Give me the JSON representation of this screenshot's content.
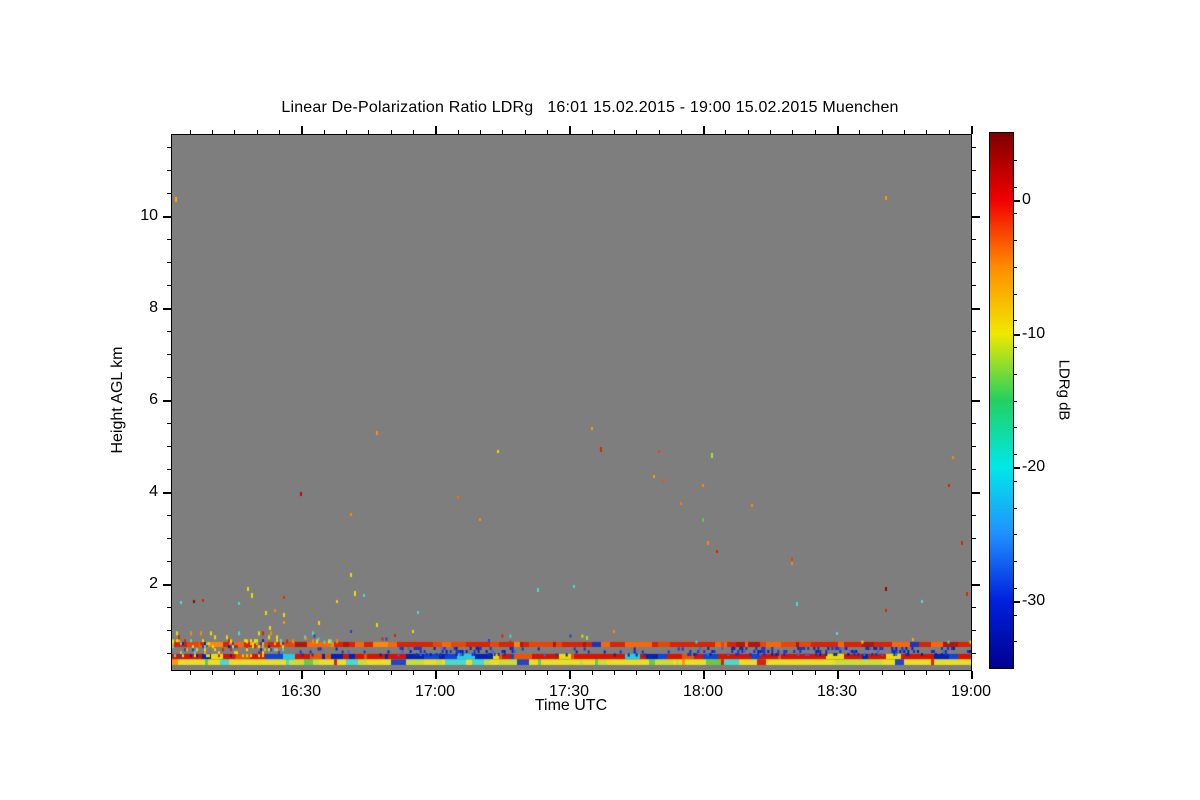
{
  "chart_data": {
    "type": "heatmap",
    "title": "Linear De-Polarization Ratio LDRg   16:01 15.02.2015 - 19:00 15.02.2015 Muenchen",
    "station": "Muenchen",
    "time_start": "16:01 15.02.2015",
    "time_end": "19:00 15.02.2015",
    "background_color": "#7e7e7e",
    "x_axis": {
      "label": "Time UTC",
      "range": [
        "16:01",
        "19:00"
      ],
      "ticks": [
        "16:30",
        "17:00",
        "17:30",
        "18:00",
        "18:30",
        "19:00"
      ],
      "minor_step_min": 5
    },
    "y_axis": {
      "label": "Height AGL km",
      "range_km": [
        0.13,
        11.76
      ],
      "ticks": [
        2,
        4,
        6,
        8,
        10
      ],
      "minor_step_km": 0.5
    },
    "colorbar": {
      "label": "LDRg dB",
      "range_db": [
        5,
        -35
      ],
      "ticks": [
        0,
        -10,
        -20,
        -30
      ],
      "minor_step_db": 2,
      "gradient": [
        [
          "#7f0000",
          0
        ],
        [
          "#f00000",
          12.5
        ],
        [
          "#ff8c00",
          25
        ],
        [
          "#f0e800",
          37.5
        ],
        [
          "#22d060",
          50
        ],
        [
          "#00e8e8",
          62.5
        ],
        [
          "#2090ff",
          75
        ],
        [
          "#0020dd",
          87.5
        ],
        [
          "#000090",
          100
        ]
      ]
    },
    "ground_bands": [
      {
        "name": "surface-red-line",
        "km_hi": 0.74,
        "km_lo": 0.63,
        "step": 3,
        "max_run": 5,
        "palette": [
          [
            "#dd2200",
            40
          ],
          [
            "#ee4400",
            25
          ],
          [
            "#b81400",
            15
          ],
          [
            "#ff6600",
            15
          ],
          [
            "#ff8800",
            3
          ],
          [
            "#2233bb",
            2
          ]
        ]
      },
      {
        "name": "near-ground-red-blue",
        "km_hi": 0.48,
        "km_lo": 0.37,
        "step": 3,
        "max_run": 6,
        "palette": [
          [
            "#dd1100",
            48
          ],
          [
            "#0022bb",
            22
          ],
          [
            "#1144dd",
            12
          ],
          [
            "#ee5500",
            8
          ],
          [
            "#22ccee",
            5
          ],
          [
            "#eedd00",
            5
          ]
        ]
      },
      {
        "name": "lowest-yellow-green",
        "km_hi": 0.36,
        "km_lo": 0.24,
        "step": 3,
        "max_run": 6,
        "palette": [
          [
            "#e8e020",
            52
          ],
          [
            "#c8e030",
            14
          ],
          [
            "#66cc44",
            10
          ],
          [
            "#44ddcc",
            9
          ],
          [
            "#ff9900",
            7
          ],
          [
            "#2244cc",
            4
          ],
          [
            "#dd2200",
            4
          ]
        ]
      }
    ],
    "noise_regions": [
      {
        "name": "left-mixed-clutter",
        "t0": "16:01",
        "t1": "16:26",
        "km_hi": 0.8,
        "km_lo": 0.45,
        "density": 0.3,
        "dw": 2,
        "dh": 3,
        "palette": [
          [
            "#eedd00",
            30
          ],
          [
            "#ffaa00",
            15
          ],
          [
            "#dd2200",
            15
          ],
          [
            "#44ddcc",
            12
          ],
          [
            "#2244cc",
            13
          ],
          [
            "#aadd33",
            8
          ],
          [
            "#0022aa",
            7
          ]
        ]
      },
      {
        "name": "left-yellow-spikes",
        "t0": "16:01",
        "t1": "16:38",
        "km_hi": 0.97,
        "km_lo": 0.74,
        "density": 0.07,
        "dw": 2,
        "dh": 4,
        "palette": [
          [
            "#eedd00",
            60
          ],
          [
            "#44ddcc",
            15
          ],
          [
            "#ff8800",
            15
          ],
          [
            "#dd2200",
            10
          ]
        ]
      },
      {
        "name": "blue-drips-a",
        "t0": "16:26",
        "t1": "16:52",
        "km_hi": 0.62,
        "km_lo": 0.48,
        "density": 0.1,
        "dw": 2,
        "dh": 3,
        "palette": [
          [
            "#1133cc",
            50
          ],
          [
            "#0022aa",
            35
          ],
          [
            "#3366ee",
            15
          ]
        ]
      },
      {
        "name": "blue-drips-b",
        "t0": "16:52",
        "t1": "17:18",
        "km_hi": 0.63,
        "km_lo": 0.47,
        "density": 0.3,
        "dw": 2,
        "dh": 3,
        "palette": [
          [
            "#1133cc",
            50
          ],
          [
            "#0022aa",
            35
          ],
          [
            "#3366ee",
            15
          ]
        ]
      },
      {
        "name": "blue-drips-c",
        "t0": "17:18",
        "t1": "17:56",
        "km_hi": 0.62,
        "km_lo": 0.48,
        "density": 0.08,
        "dw": 2,
        "dh": 3,
        "palette": [
          [
            "#1133cc",
            50
          ],
          [
            "#0022aa",
            35
          ],
          [
            "#3366ee",
            15
          ]
        ]
      },
      {
        "name": "blue-drips-d",
        "t0": "17:56",
        "t1": "18:47",
        "km_hi": 0.63,
        "km_lo": 0.47,
        "density": 0.32,
        "dw": 2,
        "dh": 3,
        "palette": [
          [
            "#1133cc",
            50
          ],
          [
            "#0022aa",
            35
          ],
          [
            "#3366ee",
            15
          ]
        ]
      },
      {
        "name": "blue-drips-e",
        "t0": "18:47",
        "t1": "19:00",
        "km_hi": 0.63,
        "km_lo": 0.47,
        "density": 0.22,
        "dw": 2,
        "dh": 3,
        "palette": [
          [
            "#1133cc",
            50
          ],
          [
            "#0022aa",
            35
          ],
          [
            "#3366ee",
            15
          ]
        ]
      },
      {
        "name": "sparse-above-line",
        "t0": "16:30",
        "t1": "19:00",
        "km_hi": 0.9,
        "km_lo": 0.72,
        "density": 0.015,
        "dw": 2,
        "dh": 3,
        "palette": [
          [
            "#2244cc",
            40
          ],
          [
            "#44ddcc",
            25
          ],
          [
            "#dd2200",
            20
          ],
          [
            "#eedd00",
            15
          ]
        ]
      }
    ],
    "specks": [
      {
        "t": "16:02",
        "km": 10.35,
        "c": "#ffaa00",
        "h": 5
      },
      {
        "t": "18:41",
        "km": 10.39,
        "c": "#ff9900",
        "h": 4
      },
      {
        "t": "16:47",
        "km": 5.28,
        "c": "#ff8833",
        "h": 4
      },
      {
        "t": "17:35",
        "km": 5.37,
        "c": "#ff9900",
        "h": 3
      },
      {
        "t": "16:30",
        "km": 3.96,
        "c": "#cc0000",
        "h": 4
      },
      {
        "t": "16:41",
        "km": 3.5,
        "c": "#ff8800",
        "h": 3
      },
      {
        "t": "16:41",
        "km": 2.2,
        "c": "#eedd00",
        "h": 4
      },
      {
        "t": "17:10",
        "km": 3.41,
        "c": "#ff8800",
        "h": 3
      },
      {
        "t": "17:14",
        "km": 4.87,
        "c": "#eedd00",
        "h": 3
      },
      {
        "t": "17:05",
        "km": 3.89,
        "c": "#ff6600",
        "h": 3
      },
      {
        "t": "17:37",
        "km": 4.93,
        "c": "#dd2200",
        "h": 5
      },
      {
        "t": "17:50",
        "km": 4.87,
        "c": "#ee4411",
        "h": 3
      },
      {
        "t": "18:02",
        "km": 4.8,
        "c": "#aade33",
        "h": 5
      },
      {
        "t": "17:49",
        "km": 4.33,
        "c": "#ff9900",
        "h": 3
      },
      {
        "t": "17:51",
        "km": 4.24,
        "c": "#ee5511",
        "h": 3
      },
      {
        "t": "18:00",
        "km": 4.13,
        "c": "#ff8800",
        "h": 3
      },
      {
        "t": "17:55",
        "km": 3.76,
        "c": "#ff7700",
        "h": 3
      },
      {
        "t": "18:11",
        "km": 3.7,
        "c": "#ff8800",
        "h": 3
      },
      {
        "t": "18:00",
        "km": 3.4,
        "c": "#55cc55",
        "h": 4
      },
      {
        "t": "18:01",
        "km": 2.9,
        "c": "#ff8800",
        "h": 4
      },
      {
        "t": "18:03",
        "km": 2.7,
        "c": "#dd2200",
        "h": 3
      },
      {
        "t": "18:20",
        "km": 2.54,
        "c": "#ee4400",
        "h": 4
      },
      {
        "t": "18:20",
        "km": 2.44,
        "c": "#ff8800",
        "h": 3
      },
      {
        "t": "18:21",
        "km": 1.57,
        "c": "#44ddcc",
        "h": 4
      },
      {
        "t": "18:41",
        "km": 1.89,
        "c": "#990000",
        "h": 4
      },
      {
        "t": "18:49",
        "km": 1.61,
        "c": "#44ddee",
        "h": 3
      },
      {
        "t": "18:41",
        "km": 1.43,
        "c": "#dd2200",
        "h": 3
      },
      {
        "t": "18:56",
        "km": 4.76,
        "c": "#ff8800",
        "h": 3
      },
      {
        "t": "18:55",
        "km": 4.13,
        "c": "#dd2200",
        "h": 3
      },
      {
        "t": "18:58",
        "km": 2.89,
        "c": "#dd2200",
        "h": 4
      },
      {
        "t": "18:59",
        "km": 1.78,
        "c": "#dd2200",
        "h": 4
      },
      {
        "t": "17:23",
        "km": 1.87,
        "c": "#44ddcc",
        "h": 4
      },
      {
        "t": "16:19",
        "km": 1.76,
        "c": "#eedd00",
        "h": 5
      },
      {
        "t": "16:18",
        "km": 1.9,
        "c": "#eedd00",
        "h": 4
      },
      {
        "t": "16:16",
        "km": 1.57,
        "c": "#44ddcc",
        "h": 3
      },
      {
        "t": "16:03",
        "km": 1.59,
        "c": "#44ddee",
        "h": 3
      },
      {
        "t": "16:06",
        "km": 1.61,
        "c": "#990000",
        "h": 3
      },
      {
        "t": "16:08",
        "km": 1.65,
        "c": "#dd2200",
        "h": 3
      },
      {
        "t": "16:26",
        "km": 1.7,
        "c": "#dd3300",
        "h": 3
      },
      {
        "t": "16:24",
        "km": 1.43,
        "c": "#ff8800",
        "h": 3
      },
      {
        "t": "16:22",
        "km": 1.37,
        "c": "#eedd00",
        "h": 4
      },
      {
        "t": "16:26",
        "km": 1.33,
        "c": "#eedd00",
        "h": 4
      },
      {
        "t": "16:23",
        "km": 1.04,
        "c": "#eedd00",
        "h": 4
      },
      {
        "t": "16:26",
        "km": 1.17,
        "c": "#ff9900",
        "h": 3
      },
      {
        "t": "16:34",
        "km": 1.15,
        "c": "#eedd00",
        "h": 4
      },
      {
        "t": "16:41",
        "km": 0.96,
        "c": "#2244cc",
        "h": 3
      },
      {
        "t": "16:47",
        "km": 1.11,
        "c": "#eedd00",
        "h": 4
      },
      {
        "t": "16:31",
        "km": 0.82,
        "c": "#ff8800",
        "h": 3
      },
      {
        "t": "16:38",
        "km": 1.61,
        "c": "#ffcc00",
        "h": 3
      },
      {
        "t": "16:55",
        "km": 0.96,
        "c": "#eedd00",
        "h": 3
      },
      {
        "t": "16:56",
        "km": 1.37,
        "c": "#44ddcc",
        "h": 3
      },
      {
        "t": "16:51",
        "km": 0.89,
        "c": "#dd2200",
        "h": 3
      },
      {
        "t": "16:42",
        "km": 1.8,
        "c": "#eedd00",
        "h": 5
      },
      {
        "t": "16:44",
        "km": 1.74,
        "c": "#44ddcc",
        "h": 3
      },
      {
        "t": "17:34",
        "km": 0.83,
        "c": "#aadd33",
        "h": 4
      },
      {
        "t": "17:40",
        "km": 0.96,
        "c": "#ff8800",
        "h": 3
      },
      {
        "t": "17:31",
        "km": 1.95,
        "c": "#44ddcc",
        "h": 3
      },
      {
        "t": "18:30",
        "km": 0.93,
        "c": "#44ddee",
        "h": 3
      },
      {
        "t": "18:47",
        "km": 0.8,
        "c": "#ffaa00",
        "h": 3
      },
      {
        "t": "17:12",
        "km": 0.78,
        "c": "#2244cc",
        "h": 3
      }
    ]
  }
}
